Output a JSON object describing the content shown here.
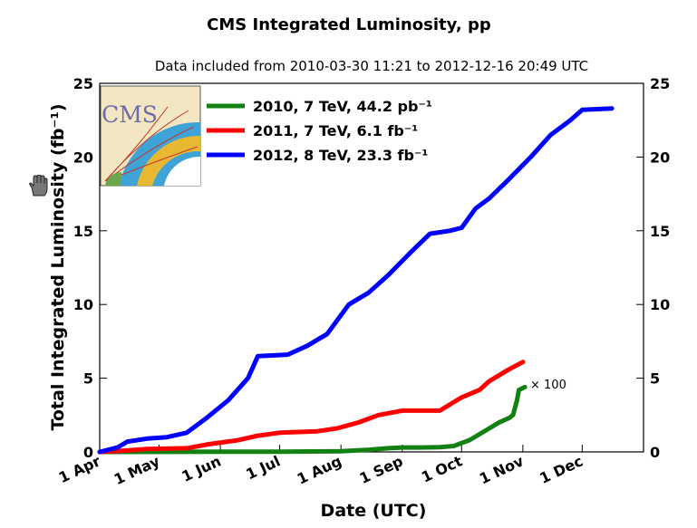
{
  "chart_data": {
    "type": "line",
    "title": "CMS Integrated Luminosity, pp",
    "subtitle": "Data included from 2010-03-30 11:21 to 2012-12-16 20:49 UTC",
    "xlabel": "Date (UTC)",
    "ylabel": "Total Integrated Luminosity (fb⁻¹)",
    "ylim": [
      0,
      25
    ],
    "yticks": [
      0,
      5,
      10,
      15,
      20,
      25
    ],
    "xticks": [
      "1 Apr",
      "1 May",
      "1 Jun",
      "1 Jul",
      "1 Aug",
      "1 Sep",
      "1 Oct",
      "1 Nov",
      "1 Dec"
    ],
    "grid": false,
    "legend_position": "top-left",
    "logo": "CMS",
    "annotation": "× 100",
    "series": [
      {
        "name": "2010, 7 TeV, 44.2 pb⁻¹",
        "color": "#138013",
        "points": [
          [
            "2010-04-01",
            0
          ],
          [
            "2010-07-01",
            0.02
          ],
          [
            "2010-08-01",
            0.05
          ],
          [
            "2010-08-15",
            0.15
          ],
          [
            "2010-08-25",
            0.25
          ],
          [
            "2010-09-01",
            0.3
          ],
          [
            "2010-09-10",
            0.3
          ],
          [
            "2010-09-20",
            0.32
          ],
          [
            "2010-09-27",
            0.4
          ],
          [
            "2010-10-01",
            0.6
          ],
          [
            "2010-10-05",
            0.8
          ],
          [
            "2010-10-10",
            1.2
          ],
          [
            "2010-10-15",
            1.6
          ],
          [
            "2010-10-20",
            2.0
          ],
          [
            "2010-10-25",
            2.3
          ],
          [
            "2010-10-27",
            2.5
          ],
          [
            "2010-10-29",
            3.5
          ],
          [
            "2010-10-30",
            4.2
          ],
          [
            "2010-11-02",
            4.4
          ]
        ]
      },
      {
        "name": "2011, 7 TeV, 6.1 fb⁻¹",
        "color": "#ff0000",
        "points": [
          [
            "2011-04-01",
            0
          ],
          [
            "2011-04-15",
            0.1
          ],
          [
            "2011-04-25",
            0.2
          ],
          [
            "2011-05-15",
            0.25
          ],
          [
            "2011-05-25",
            0.5
          ],
          [
            "2011-06-10",
            0.8
          ],
          [
            "2011-06-20",
            1.1
          ],
          [
            "2011-07-01",
            1.3
          ],
          [
            "2011-07-20",
            1.4
          ],
          [
            "2011-07-30",
            1.6
          ],
          [
            "2011-08-10",
            2.0
          ],
          [
            "2011-08-20",
            2.5
          ],
          [
            "2011-09-01",
            2.8
          ],
          [
            "2011-09-20",
            2.8
          ],
          [
            "2011-10-01",
            3.7
          ],
          [
            "2011-10-10",
            4.2
          ],
          [
            "2011-10-15",
            4.8
          ],
          [
            "2011-10-20",
            5.2
          ],
          [
            "2011-10-25",
            5.6
          ],
          [
            "2011-11-01",
            6.1
          ]
        ]
      },
      {
        "name": "2012, 8 TeV, 23.3 fb⁻¹",
        "color": "#0000ff",
        "points": [
          [
            "2012-04-01",
            0
          ],
          [
            "2012-04-10",
            0.3
          ],
          [
            "2012-04-15",
            0.7
          ],
          [
            "2012-04-25",
            0.9
          ],
          [
            "2012-05-05",
            1.0
          ],
          [
            "2012-05-15",
            1.3
          ],
          [
            "2012-05-25",
            2.3
          ],
          [
            "2012-06-05",
            3.5
          ],
          [
            "2012-06-15",
            5.0
          ],
          [
            "2012-06-20",
            6.5
          ],
          [
            "2012-07-05",
            6.6
          ],
          [
            "2012-07-15",
            7.2
          ],
          [
            "2012-07-25",
            8.0
          ],
          [
            "2012-08-05",
            10.0
          ],
          [
            "2012-08-15",
            10.8
          ],
          [
            "2012-08-25",
            12.0
          ],
          [
            "2012-09-05",
            13.5
          ],
          [
            "2012-09-15",
            14.8
          ],
          [
            "2012-09-25",
            15.0
          ],
          [
            "2012-10-01",
            15.2
          ],
          [
            "2012-10-08",
            16.5
          ],
          [
            "2012-10-15",
            17.2
          ],
          [
            "2012-10-25",
            18.5
          ],
          [
            "2012-11-05",
            20.0
          ],
          [
            "2012-11-15",
            21.5
          ],
          [
            "2012-11-25",
            22.5
          ],
          [
            "2012-12-01",
            23.2
          ],
          [
            "2012-12-16",
            23.3
          ]
        ]
      }
    ]
  }
}
